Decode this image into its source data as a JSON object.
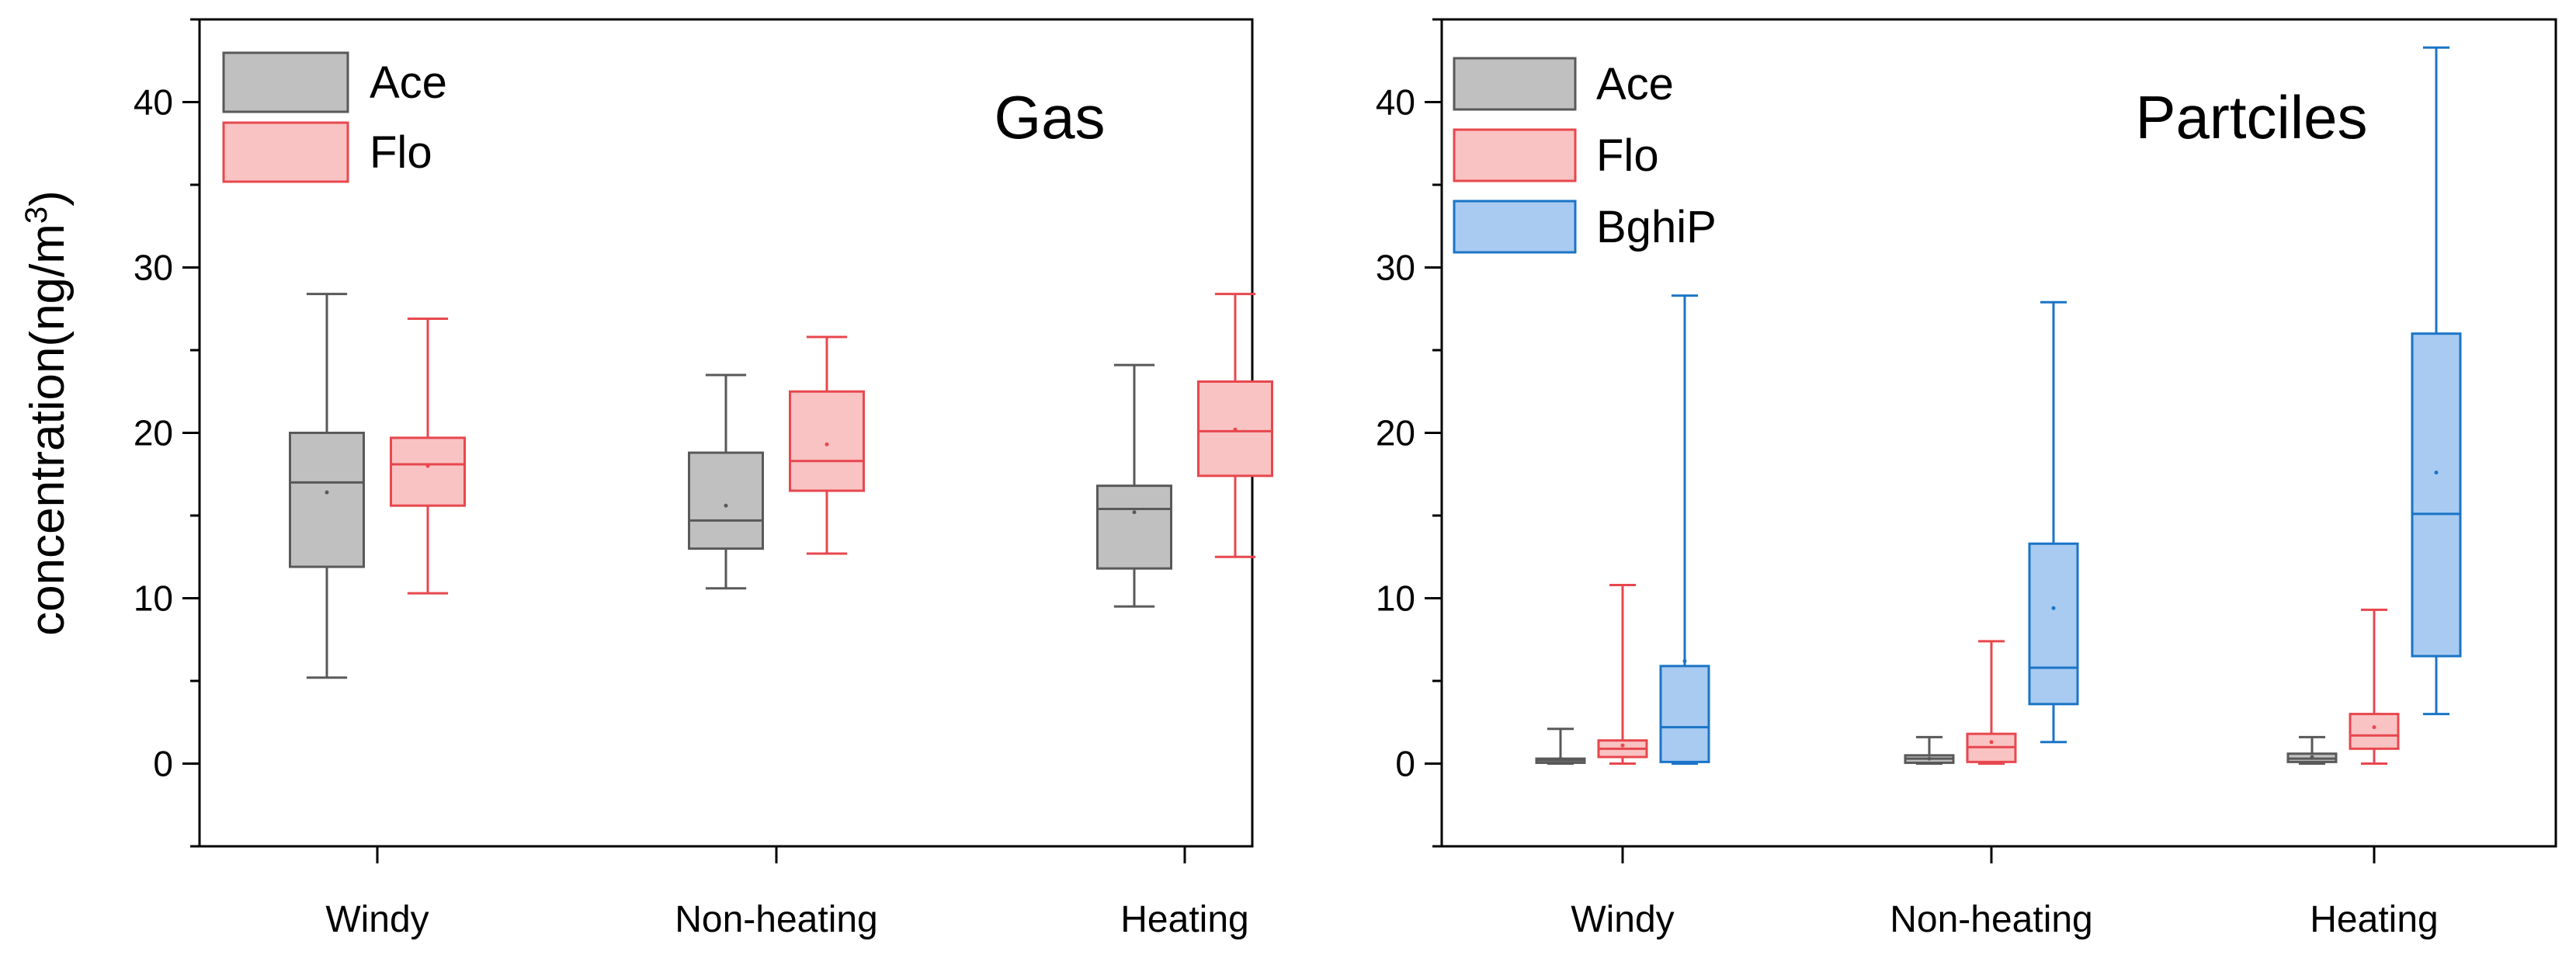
{
  "y_axis_label": "concentration(ng/m",
  "y_axis_label_superscript": "3",
  "y_axis_label_close": ")",
  "chart_data": [
    {
      "type": "box",
      "title": "Gas",
      "xlabel": "",
      "ylabel": "concentration(ng/m3)",
      "ylim": [
        -5,
        45
      ],
      "yticks": [
        0,
        10,
        20,
        30,
        40
      ],
      "categories": [
        "Windy",
        "Non-heating",
        "Heating"
      ],
      "legend_position": "top-left",
      "series": [
        {
          "name": "Ace",
          "color": "#595959",
          "fill": "#c0c0c0",
          "boxes": [
            {
              "min": 5.2,
              "q1": 11.9,
              "median": 17.0,
              "q3": 20.0,
              "max": 28.4,
              "mean": 16.4
            },
            {
              "min": 10.6,
              "q1": 13.0,
              "median": 14.7,
              "q3": 18.8,
              "max": 23.5,
              "mean": 15.6
            },
            {
              "min": 9.5,
              "q1": 11.8,
              "median": 15.4,
              "q3": 16.8,
              "max": 24.1,
              "mean": 15.2
            }
          ]
        },
        {
          "name": "Flo",
          "color": "#e8474e",
          "fill": "#f9c3c3",
          "boxes": [
            {
              "min": 10.3,
              "q1": 15.6,
              "median": 18.1,
              "q3": 19.7,
              "max": 26.9,
              "mean": 18.0
            },
            {
              "min": 12.7,
              "q1": 16.5,
              "median": 18.3,
              "q3": 22.5,
              "max": 25.8,
              "mean": 19.3
            },
            {
              "min": 12.5,
              "q1": 17.4,
              "median": 20.1,
              "q3": 23.1,
              "max": 28.4,
              "mean": 20.2
            }
          ]
        }
      ]
    },
    {
      "type": "box",
      "title": "Partciles",
      "xlabel": "",
      "ylabel": "",
      "ylim": [
        -5,
        45
      ],
      "yticks": [
        0,
        10,
        20,
        30,
        40
      ],
      "categories": [
        "Windy",
        "Non-heating",
        "Heating"
      ],
      "legend_position": "top-left",
      "series": [
        {
          "name": "Ace",
          "color": "#595959",
          "fill": "#c0c0c0",
          "boxes": [
            {
              "min": 0.0,
              "q1": 0.05,
              "median": 0.2,
              "q3": 0.3,
              "max": 2.1,
              "mean": 0.3
            },
            {
              "min": 0.0,
              "q1": 0.05,
              "median": 0.3,
              "q3": 0.5,
              "max": 1.6,
              "mean": 0.3
            },
            {
              "min": 0.0,
              "q1": 0.1,
              "median": 0.3,
              "q3": 0.6,
              "max": 1.6,
              "mean": 0.4
            }
          ]
        },
        {
          "name": "Flo",
          "color": "#e8474e",
          "fill": "#f9c3c3",
          "boxes": [
            {
              "min": 0.0,
              "q1": 0.4,
              "median": 0.9,
              "q3": 1.4,
              "max": 10.8,
              "mean": 1.1
            },
            {
              "min": 0.0,
              "q1": 0.1,
              "median": 1.0,
              "q3": 1.8,
              "max": 7.4,
              "mean": 1.3
            },
            {
              "min": 0.0,
              "q1": 0.9,
              "median": 1.7,
              "q3": 3.0,
              "max": 9.3,
              "mean": 2.2
            }
          ]
        },
        {
          "name": "BghiP",
          "color": "#1a74c7",
          "fill": "#a9cbf1",
          "boxes": [
            {
              "min": 0.0,
              "q1": 0.1,
              "median": 2.2,
              "q3": 5.9,
              "max": 28.3,
              "mean": 6.2
            },
            {
              "min": 1.3,
              "q1": 3.6,
              "median": 5.8,
              "q3": 13.3,
              "max": 27.9,
              "mean": 9.4
            },
            {
              "min": 3.0,
              "q1": 6.5,
              "median": 15.1,
              "q3": 26.0,
              "max": 43.3,
              "mean": 17.6
            }
          ]
        }
      ]
    }
  ]
}
